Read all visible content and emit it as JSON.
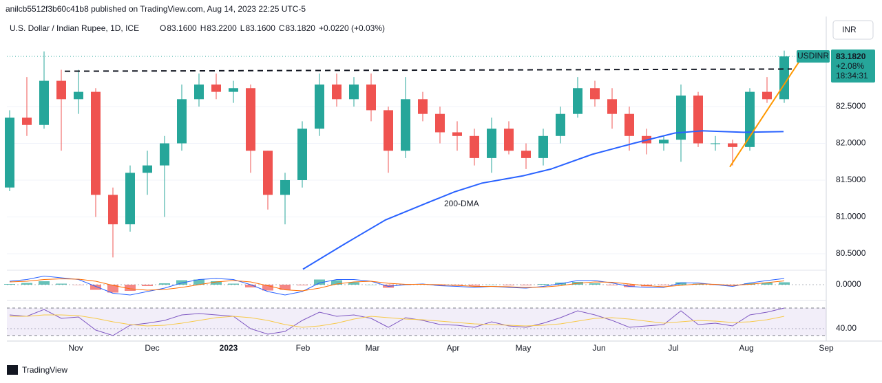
{
  "header": {
    "publisher": "anilcb5512f3b60c41b8 published on TradingView.com, Aug 14, 2023 22:25 UTC-5",
    "symbol": "U.S. Dollar / Indian Rupee, 1D, ICE",
    "ohlc": [
      {
        "key": "O",
        "value": "83.1600"
      },
      {
        "key": "H",
        "value": "83.2200"
      },
      {
        "key": "L",
        "value": "83.1600"
      },
      {
        "key": "C",
        "value": "83.1820"
      }
    ],
    "change": "+0.0220 (+0.03%)",
    "currency": "INR"
  },
  "footer": {
    "brand": "TradingView"
  },
  "chart_data": [
    {
      "type": "candlestick",
      "xlim": [
        -0.16,
        47.44
      ],
      "xticks": [
        {
          "value": 3.84,
          "label": "Nov"
        },
        {
          "value": 8.28,
          "label": "Dec"
        },
        {
          "value": 12.72,
          "label": "2023"
        },
        {
          "value": 17.04,
          "label": "Feb"
        },
        {
          "value": 21.08,
          "label": "Mar"
        },
        {
          "value": 25.76,
          "label": "Apr"
        },
        {
          "value": 29.84,
          "label": "May"
        },
        {
          "value": 34.24,
          "label": "Jun"
        },
        {
          "value": 38.56,
          "label": "Jul"
        },
        {
          "value": 42.8,
          "label": "Aug"
        },
        {
          "value": 47.44,
          "label": "Sep"
        }
      ],
      "ylim": [
        80.285,
        83.668
      ],
      "yticks": [
        {
          "value": 80.5,
          "label": "80.5000"
        },
        {
          "value": 81,
          "label": "81.0000"
        },
        {
          "value": 81.5,
          "label": "81.5000"
        },
        {
          "value": 82,
          "label": "82.0000"
        },
        {
          "value": 82.5,
          "label": "82.5000"
        }
      ],
      "up_color": "#26a69a",
      "down_color": "#ef5350",
      "candles": [
        [
          81.4,
          82.45,
          81.35,
          82.35
        ],
        [
          82.35,
          82.9,
          82.1,
          82.25
        ],
        [
          82.25,
          83.25,
          82.2,
          82.85
        ],
        [
          82.85,
          83.0,
          81.9,
          82.6
        ],
        [
          82.6,
          83.0,
          82.4,
          82.7
        ],
        [
          82.7,
          82.75,
          81.0,
          81.3
        ],
        [
          81.3,
          81.4,
          80.45,
          80.9
        ],
        [
          80.9,
          81.7,
          80.8,
          81.6
        ],
        [
          81.6,
          81.9,
          81.3,
          81.7
        ],
        [
          81.7,
          82.1,
          81.0,
          82.0
        ],
        [
          82.0,
          82.8,
          81.9,
          82.6
        ],
        [
          82.6,
          82.95,
          82.5,
          82.8
        ],
        [
          82.8,
          82.95,
          82.6,
          82.7
        ],
        [
          82.7,
          82.85,
          82.55,
          82.75
        ],
        [
          82.75,
          82.8,
          81.6,
          81.9
        ],
        [
          81.9,
          81.9,
          81.1,
          81.3
        ],
        [
          81.3,
          81.6,
          80.9,
          81.5
        ],
        [
          81.5,
          82.3,
          81.4,
          82.2
        ],
        [
          82.2,
          82.95,
          82.1,
          82.8
        ],
        [
          82.8,
          82.95,
          82.5,
          82.6
        ],
        [
          82.6,
          82.9,
          82.5,
          82.8
        ],
        [
          82.8,
          82.95,
          82.3,
          82.45
        ],
        [
          82.45,
          82.5,
          81.6,
          81.9
        ],
        [
          81.9,
          82.9,
          81.8,
          82.6
        ],
        [
          82.6,
          82.7,
          82.3,
          82.4
        ],
        [
          82.4,
          82.5,
          82.0,
          82.15
        ],
        [
          82.15,
          82.3,
          81.9,
          82.1
        ],
        [
          82.1,
          82.2,
          81.7,
          81.8
        ],
        [
          81.8,
          82.35,
          81.6,
          82.2
        ],
        [
          82.2,
          82.3,
          81.85,
          81.9
        ],
        [
          81.9,
          82.0,
          81.65,
          81.8
        ],
        [
          81.8,
          82.2,
          81.7,
          82.1
        ],
        [
          82.1,
          82.5,
          82.0,
          82.4
        ],
        [
          82.4,
          82.9,
          82.35,
          82.75
        ],
        [
          82.75,
          82.85,
          82.5,
          82.6
        ],
        [
          82.6,
          82.75,
          82.2,
          82.4
        ],
        [
          82.4,
          82.5,
          81.9,
          82.1
        ],
        [
          82.1,
          82.2,
          81.85,
          82.0
        ],
        [
          82.0,
          82.1,
          81.9,
          82.05
        ],
        [
          82.05,
          82.8,
          81.75,
          82.65
        ],
        [
          82.65,
          82.7,
          81.95,
          82.0
        ],
        [
          82.0,
          82.1,
          81.9,
          82.0
        ],
        [
          82.0,
          82.05,
          81.7,
          81.95
        ],
        [
          81.95,
          82.75,
          81.9,
          82.7
        ],
        [
          82.7,
          82.9,
          82.55,
          82.6
        ],
        [
          82.6,
          83.26,
          82.55,
          83.182
        ]
      ],
      "overlays": [
        {
          "name": "200-DMA",
          "color": "#2962ff",
          "x": [
            17.04,
            19.44,
            21.84,
            24.24,
            25.84,
            27.44,
            29.84,
            31.44,
            33.84,
            36.24,
            38.64,
            40.24,
            42.64,
            44.96
          ],
          "values": [
            80.29,
            80.63,
            80.96,
            81.19,
            81.34,
            81.46,
            81.56,
            81.65,
            81.85,
            82.0,
            82.14,
            82.17,
            82.15,
            82.16
          ]
        },
        {
          "color": "#131722",
          "dashed": true,
          "x": [
            3.2,
            45.44
          ],
          "values": [
            82.98,
            83.01
          ]
        },
        {
          "color": "#ff9800",
          "x": [
            41.84,
            45.92
          ],
          "values": [
            81.68,
            83.13
          ]
        }
      ],
      "badge": {
        "name": "USDINR",
        "price": "83.1820",
        "change": "+2.08%",
        "countdown": "18:34:31",
        "color": "#26a69a"
      }
    },
    {
      "type": "macd",
      "ylim": [
        -0.4,
        0.4
      ],
      "yticks": [
        {
          "value": 0,
          "label": "0.0000"
        }
      ],
      "hist_colors": {
        "up": "#26a69a",
        "down": "#ef5350"
      },
      "histogram": [
        0.02,
        0.05,
        0.1,
        0.03,
        -0.01,
        -0.15,
        -0.23,
        -0.18,
        -0.04,
        0.04,
        0.13,
        0.15,
        0.1,
        0.03,
        -0.08,
        -0.17,
        -0.15,
        -0.02,
        0.15,
        0.13,
        0.07,
        0.0,
        -0.09,
        -0.01,
        0.01,
        -0.03,
        -0.03,
        -0.03,
        0.0,
        -0.02,
        -0.02,
        0.02,
        0.06,
        0.08,
        0.04,
        -0.02,
        -0.07,
        -0.05,
        -0.02,
        0.07,
        0.03,
        -0.01,
        -0.03,
        0.04,
        0.06,
        0.07
      ],
      "series": [
        {
          "color": "#2962ff",
          "values": [
            0.1,
            0.15,
            0.25,
            0.2,
            0.15,
            -0.05,
            -0.25,
            -0.3,
            -0.2,
            -0.1,
            0.05,
            0.15,
            0.18,
            0.15,
            0.0,
            -0.2,
            -0.3,
            -0.2,
            0.05,
            0.15,
            0.15,
            0.1,
            -0.05,
            0.0,
            0.02,
            -0.03,
            -0.05,
            -0.08,
            -0.05,
            -0.08,
            -0.1,
            -0.05,
            0.03,
            0.12,
            0.12,
            0.05,
            -0.05,
            -0.08,
            -0.08,
            0.05,
            0.05,
            0.0,
            -0.05,
            0.05,
            0.12,
            0.18
          ]
        },
        {
          "color": "#ff6d00",
          "values": [
            0.08,
            0.1,
            0.15,
            0.17,
            0.16,
            0.1,
            -0.02,
            -0.12,
            -0.16,
            -0.14,
            -0.08,
            0.0,
            0.08,
            0.12,
            0.08,
            -0.03,
            -0.15,
            -0.18,
            -0.1,
            0.02,
            0.08,
            0.1,
            0.04,
            0.01,
            0.01,
            0.0,
            -0.02,
            -0.05,
            -0.05,
            -0.06,
            -0.08,
            -0.07,
            -0.03,
            0.04,
            0.08,
            0.07,
            0.02,
            -0.03,
            -0.06,
            -0.02,
            0.02,
            0.01,
            -0.02,
            0.01,
            0.06,
            0.11
          ]
        }
      ]
    },
    {
      "type": "rsi",
      "ylim": [
        26,
        78
      ],
      "yticks": [
        {
          "value": 40,
          "label": "40.00"
        }
      ],
      "bands": [
        30,
        70
      ],
      "band_color": "#7e57c2",
      "series": [
        {
          "color": "#7e57c2",
          "values": [
            60,
            58,
            68,
            55,
            57,
            38,
            30,
            45,
            48,
            52,
            60,
            62,
            60,
            58,
            40,
            32,
            36,
            52,
            64,
            58,
            60,
            55,
            42,
            56,
            52,
            46,
            45,
            42,
            50,
            44,
            42,
            48,
            56,
            66,
            60,
            52,
            42,
            44,
            46,
            66,
            46,
            48,
            44,
            60,
            64,
            70
          ]
        },
        {
          "color": "#f7c948",
          "values": [
            58,
            58,
            60,
            60,
            59,
            55,
            50,
            46,
            44,
            45,
            48,
            52,
            56,
            58,
            56,
            52,
            46,
            42,
            44,
            48,
            54,
            58,
            56,
            54,
            53,
            51,
            49,
            47,
            46,
            45,
            44,
            45,
            47,
            51,
            55,
            56,
            54,
            51,
            48,
            50,
            52,
            51,
            49,
            50,
            53,
            58
          ]
        }
      ]
    }
  ]
}
